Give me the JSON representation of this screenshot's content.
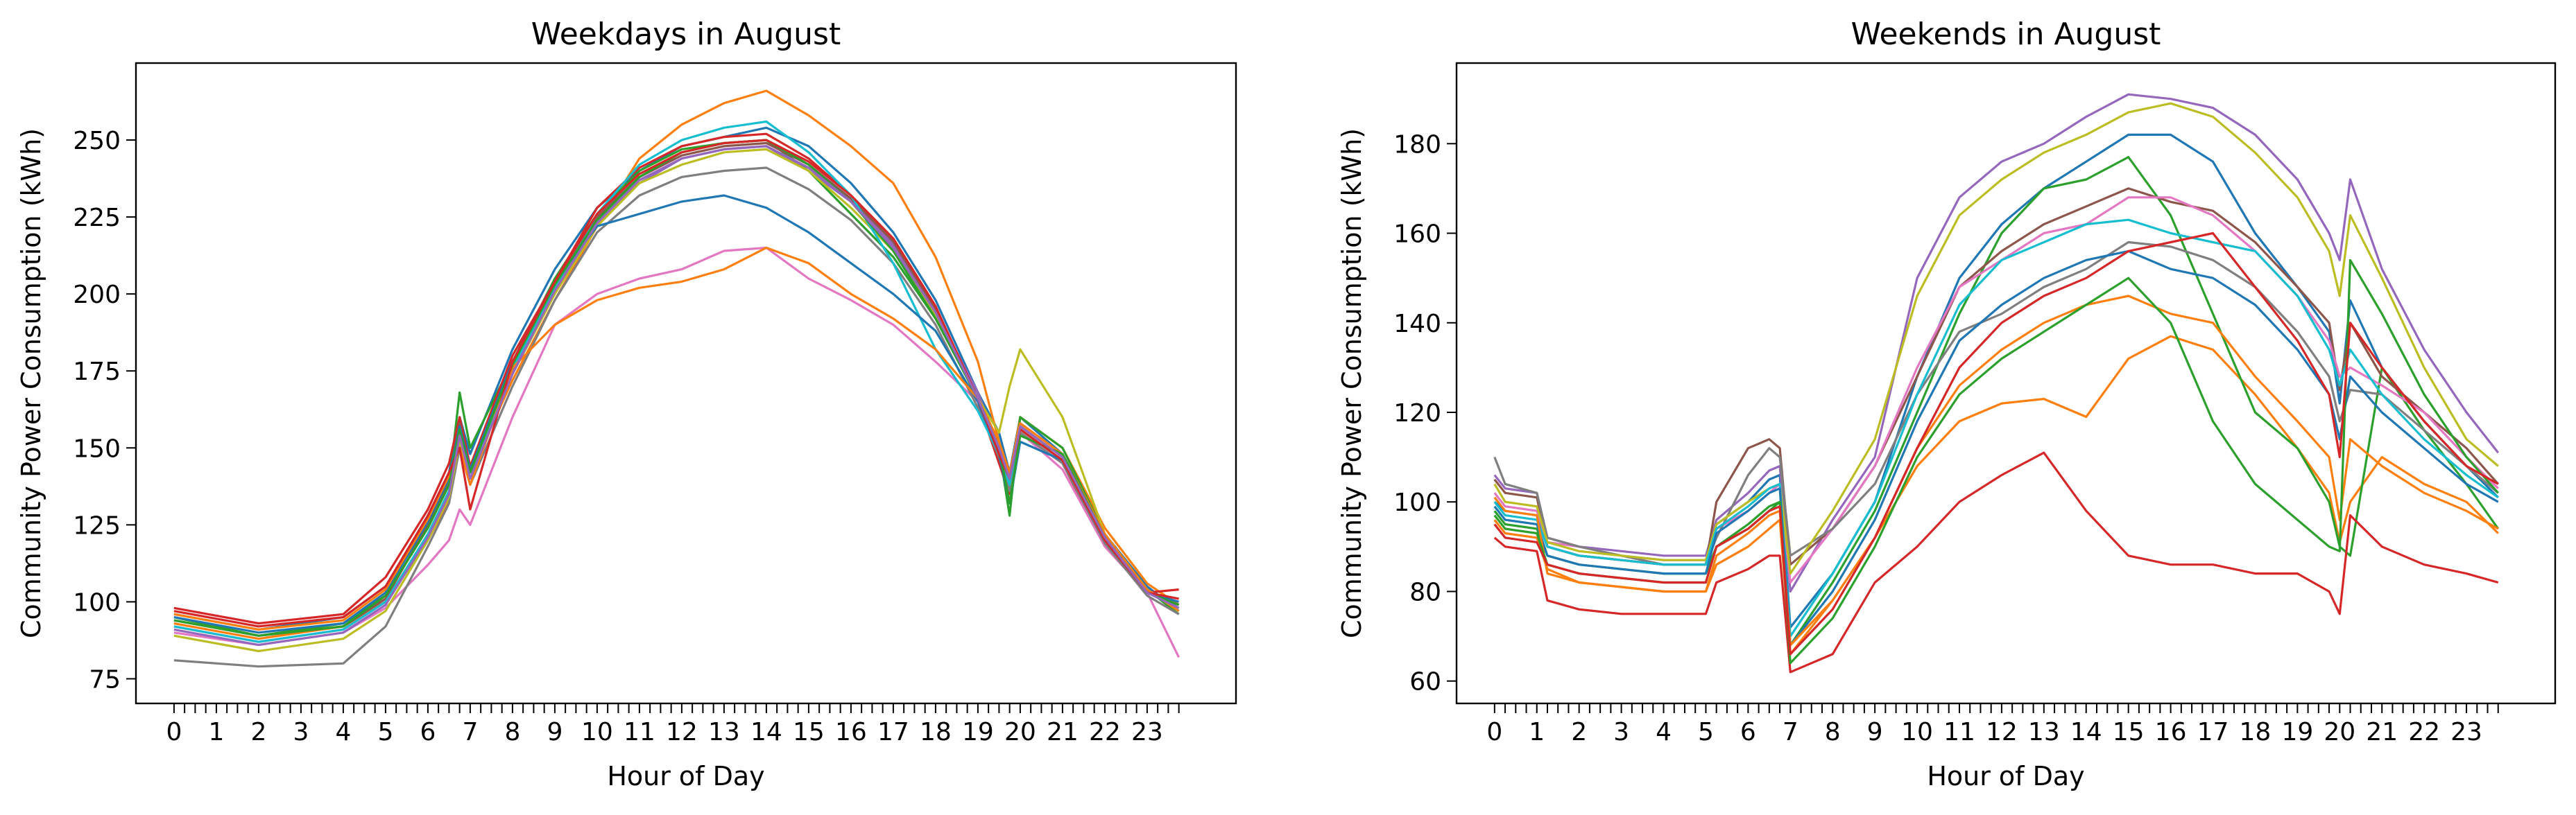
{
  "chart_data": [
    {
      "type": "line",
      "title": "Weekdays in August",
      "xlabel": "Hour of Day",
      "ylabel": "Community Power Consumption (kWh)",
      "xlim": [
        -0.9,
        25.1
      ],
      "ylim": [
        67,
        275
      ],
      "xticks": [
        0,
        1,
        2,
        3,
        4,
        5,
        6,
        7,
        8,
        9,
        10,
        11,
        12,
        13,
        14,
        15,
        16,
        17,
        18,
        19,
        20,
        21,
        22,
        23
      ],
      "yticks": [
        75,
        100,
        125,
        150,
        175,
        200,
        225,
        250
      ],
      "x": [
        0,
        2,
        4,
        5,
        6,
        6.5,
        6.75,
        7,
        8,
        9,
        10,
        11,
        12,
        13,
        14,
        15,
        16,
        17,
        18,
        19,
        19.5,
        19.75,
        20,
        21,
        22,
        23,
        23.75
      ],
      "series": [
        {
          "color": "#1f77b4",
          "values": [
            96,
            91,
            95,
            105,
            128,
            142,
            160,
            148,
            182,
            208,
            228,
            240,
            248,
            251,
            254,
            248,
            236,
            220,
            198,
            168,
            155,
            142,
            160,
            148,
            122,
            105,
            97
          ]
        },
        {
          "color": "#ff7f0e",
          "values": [
            93,
            88,
            92,
            100,
            120,
            133,
            152,
            142,
            172,
            198,
            222,
            244,
            255,
            262,
            266,
            258,
            248,
            236,
            212,
            178,
            152,
            140,
            160,
            150,
            124,
            106,
            99
          ]
        },
        {
          "color": "#2ca02c",
          "values": [
            95,
            89,
            93,
            102,
            124,
            138,
            168,
            150,
            178,
            205,
            226,
            240,
            247,
            249,
            250,
            240,
            226,
            212,
            192,
            168,
            150,
            128,
            160,
            150,
            122,
            104,
            96
          ]
        },
        {
          "color": "#d62728",
          "values": [
            98,
            93,
            96,
            108,
            130,
            145,
            160,
            144,
            180,
            204,
            228,
            241,
            248,
            251,
            252,
            244,
            232,
            218,
            196,
            165,
            145,
            135,
            155,
            145,
            118,
            103,
            104
          ]
        },
        {
          "color": "#9467bd",
          "values": [
            92,
            87,
            91,
            100,
            122,
            136,
            155,
            140,
            175,
            202,
            224,
            236,
            244,
            247,
            248,
            240,
            230,
            216,
            194,
            168,
            150,
            140,
            158,
            148,
            120,
            104,
            98
          ]
        },
        {
          "color": "#8c564b",
          "values": [
            94,
            89,
            92,
            101,
            125,
            139,
            158,
            142,
            176,
            203,
            225,
            238,
            245,
            248,
            249,
            242,
            231,
            217,
            195,
            166,
            148,
            138,
            157,
            147,
            121,
            103,
            99
          ]
        },
        {
          "color": "#e377c2",
          "values": [
            90,
            86,
            90,
            98,
            112,
            120,
            130,
            125,
            160,
            190,
            200,
            205,
            208,
            214,
            215,
            205,
            198,
            190,
            178,
            165,
            150,
            140,
            155,
            143,
            118,
            103,
            82
          ]
        },
        {
          "color": "#7f7f7f",
          "values": [
            81,
            79,
            80,
            92,
            118,
            132,
            150,
            138,
            170,
            198,
            220,
            232,
            238,
            240,
            241,
            234,
            224,
            210,
            190,
            163,
            147,
            136,
            155,
            145,
            119,
            102,
            96
          ]
        },
        {
          "color": "#bcbd22",
          "values": [
            89,
            84,
            88,
            97,
            120,
            134,
            152,
            140,
            174,
            200,
            222,
            236,
            242,
            246,
            247,
            240,
            228,
            214,
            193,
            166,
            155,
            170,
            182,
            160,
            122,
            104,
            97
          ]
        },
        {
          "color": "#17becf",
          "values": [
            92,
            87,
            91,
            100,
            122,
            136,
            155,
            142,
            176,
            202,
            226,
            242,
            250,
            254,
            256,
            246,
            232,
            210,
            182,
            162,
            148,
            138,
            156,
            146,
            120,
            103,
            98
          ]
        },
        {
          "color": "#1f77b4",
          "values": [
            95,
            90,
            93,
            103,
            126,
            140,
            157,
            143,
            178,
            204,
            222,
            226,
            230,
            232,
            228,
            220,
            210,
            200,
            188,
            165,
            148,
            132,
            152,
            146,
            120,
            103,
            100
          ]
        },
        {
          "color": "#ff7f0e",
          "values": [
            96,
            91,
            94,
            104,
            127,
            141,
            150,
            138,
            176,
            190,
            198,
            202,
            204,
            208,
            215,
            210,
            200,
            192,
            182,
            166,
            152,
            142,
            158,
            148,
            122,
            104,
            97
          ]
        },
        {
          "color": "#2ca02c",
          "values": [
            94,
            89,
            92,
            102,
            124,
            138,
            156,
            142,
            177,
            203,
            224,
            238,
            246,
            249,
            250,
            242,
            230,
            214,
            192,
            166,
            150,
            132,
            154,
            148,
            121,
            103,
            99
          ]
        },
        {
          "color": "#d62728",
          "values": [
            97,
            92,
            95,
            105,
            128,
            142,
            150,
            130,
            178,
            204,
            226,
            239,
            246,
            249,
            250,
            243,
            232,
            218,
            196,
            166,
            148,
            140,
            156,
            146,
            120,
            103,
            101
          ]
        },
        {
          "color": "#9467bd",
          "values": [
            91,
            86,
            90,
            99,
            121,
            135,
            154,
            140,
            174,
            201,
            223,
            237,
            244,
            247,
            248,
            241,
            230,
            215,
            194,
            166,
            150,
            140,
            157,
            147,
            121,
            103,
            98
          ]
        }
      ]
    },
    {
      "type": "line",
      "title": "Weekends in August",
      "xlabel": "Hour of Day",
      "ylabel": "Community Power Consumption (kWh)",
      "xlim": [
        -0.9,
        25.1
      ],
      "ylim": [
        55,
        198
      ],
      "xticks": [
        0,
        1,
        2,
        3,
        4,
        5,
        6,
        7,
        8,
        9,
        10,
        11,
        12,
        13,
        14,
        15,
        16,
        17,
        18,
        19,
        20,
        21,
        22,
        23
      ],
      "yticks": [
        60,
        80,
        100,
        120,
        140,
        160,
        180
      ],
      "x": [
        0,
        0.25,
        1,
        1.25,
        2,
        3,
        4,
        5,
        5.25,
        6,
        6.5,
        6.75,
        7,
        8,
        9,
        10,
        11,
        12,
        13,
        14,
        15,
        16,
        17,
        18,
        19,
        19.75,
        20,
        20.25,
        21,
        22,
        23,
        23.75
      ],
      "series": [
        {
          "color": "#1f77b4",
          "values": [
            100,
            98,
            97,
            90,
            88,
            87,
            86,
            86,
            95,
            100,
            105,
            106,
            72,
            84,
            100,
            128,
            150,
            162,
            170,
            176,
            182,
            182,
            176,
            160,
            148,
            138,
            122,
            145,
            130,
            118,
            108,
            101
          ]
        },
        {
          "color": "#ff7f0e",
          "values": [
            96,
            93,
            92,
            85,
            82,
            81,
            80,
            80,
            86,
            90,
            94,
            96,
            66,
            78,
            92,
            108,
            118,
            122,
            123,
            119,
            132,
            137,
            134,
            124,
            112,
            102,
            91,
            100,
            110,
            104,
            100,
            93
          ]
        },
        {
          "color": "#2ca02c",
          "values": [
            98,
            95,
            94,
            88,
            86,
            85,
            84,
            84,
            90,
            94,
            98,
            100,
            68,
            82,
            98,
            120,
            142,
            160,
            170,
            172,
            177,
            164,
            142,
            120,
            112,
            100,
            90,
            88,
            130,
            116,
            104,
            94
          ]
        },
        {
          "color": "#d62728",
          "values": [
            92,
            90,
            89,
            78,
            76,
            75,
            75,
            75,
            82,
            85,
            88,
            88,
            62,
            66,
            82,
            90,
            100,
            106,
            111,
            98,
            88,
            86,
            86,
            84,
            84,
            80,
            75,
            97,
            90,
            86,
            84,
            82
          ]
        },
        {
          "color": "#9467bd",
          "values": [
            106,
            103,
            102,
            92,
            90,
            89,
            88,
            88,
            96,
            102,
            107,
            108,
            80,
            96,
            110,
            150,
            168,
            176,
            180,
            186,
            191,
            190,
            188,
            182,
            172,
            160,
            154,
            172,
            152,
            134,
            120,
            111
          ]
        },
        {
          "color": "#8c564b",
          "values": [
            105,
            102,
            101,
            90,
            88,
            87,
            86,
            86,
            100,
            112,
            114,
            112,
            86,
            94,
            108,
            128,
            148,
            156,
            162,
            166,
            170,
            167,
            165,
            158,
            148,
            140,
            125,
            140,
            128,
            120,
            112,
            104
          ]
        },
        {
          "color": "#e377c2",
          "values": [
            102,
            99,
            98,
            91,
            90,
            88,
            87,
            87,
            94,
            98,
            102,
            104,
            82,
            94,
            108,
            130,
            148,
            154,
            160,
            162,
            168,
            168,
            164,
            156,
            146,
            136,
            128,
            130,
            126,
            120,
            110,
            103
          ]
        },
        {
          "color": "#7f7f7f",
          "values": [
            110,
            104,
            102,
            92,
            90,
            88,
            86,
            86,
            92,
            106,
            112,
            110,
            88,
            94,
            104,
            124,
            138,
            142,
            148,
            152,
            158,
            157,
            154,
            148,
            138,
            128,
            118,
            125,
            124,
            116,
            108,
            102
          ]
        },
        {
          "color": "#bcbd22",
          "values": [
            104,
            100,
            99,
            91,
            89,
            88,
            87,
            87,
            95,
            100,
            103,
            104,
            84,
            98,
            114,
            146,
            164,
            172,
            178,
            182,
            187,
            189,
            186,
            178,
            168,
            156,
            146,
            164,
            150,
            130,
            114,
            108
          ]
        },
        {
          "color": "#17becf",
          "values": [
            100,
            97,
            96,
            90,
            88,
            87,
            86,
            86,
            94,
            99,
            103,
            104,
            70,
            84,
            100,
            124,
            144,
            154,
            158,
            162,
            163,
            160,
            158,
            156,
            146,
            134,
            126,
            134,
            124,
            114,
            106,
            101
          ]
        },
        {
          "color": "#1f77b4",
          "values": [
            99,
            96,
            95,
            88,
            86,
            85,
            84,
            84,
            93,
            98,
            102,
            103,
            68,
            80,
            96,
            118,
            136,
            144,
            150,
            154,
            156,
            152,
            150,
            144,
            134,
            124,
            114,
            128,
            120,
            112,
            104,
            100
          ]
        },
        {
          "color": "#ff7f0e",
          "values": [
            101,
            98,
            97,
            84,
            82,
            81,
            80,
            80,
            88,
            93,
            97,
            98,
            68,
            78,
            92,
            112,
            126,
            134,
            140,
            144,
            146,
            142,
            140,
            128,
            118,
            110,
            96,
            114,
            108,
            102,
            98,
            94
          ]
        },
        {
          "color": "#2ca02c",
          "values": [
            97,
            94,
            93,
            86,
            84,
            83,
            82,
            82,
            90,
            95,
            99,
            100,
            64,
            74,
            90,
            110,
            124,
            132,
            138,
            144,
            150,
            140,
            118,
            104,
            96,
            90,
            89,
            154,
            142,
            124,
            110,
            102
          ]
        },
        {
          "color": "#d62728",
          "values": [
            95,
            92,
            91,
            86,
            84,
            83,
            82,
            82,
            90,
            94,
            98,
            99,
            66,
            76,
            92,
            112,
            130,
            140,
            146,
            150,
            156,
            158,
            160,
            148,
            136,
            124,
            110,
            140,
            130,
            118,
            108,
            104
          ]
        }
      ]
    }
  ]
}
